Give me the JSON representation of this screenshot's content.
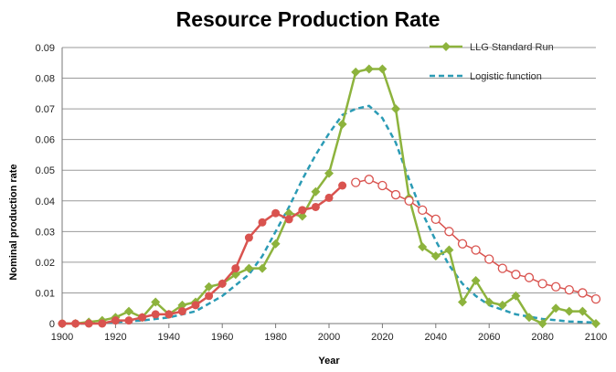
{
  "chart_data": {
    "type": "line",
    "title": "Resource Production Rate",
    "xlabel": "Year",
    "ylabel": "Nominal production rate",
    "xlim": [
      1900,
      2100
    ],
    "ylim": [
      0,
      0.09
    ],
    "x_ticks": [
      1900,
      1920,
      1940,
      1960,
      1980,
      2000,
      2020,
      2040,
      2060,
      2080,
      2100
    ],
    "y_ticks": [
      "0",
      "0.01",
      "0.02",
      "0.03",
      "0.04",
      "0.05",
      "0.06",
      "0.07",
      "0.08",
      "0.09"
    ],
    "grid": "horizontal",
    "legend_position": "top-right",
    "series": [
      {
        "name": "LLG Standard Run",
        "color": "#8db33d",
        "style": "solid-diamond",
        "x": [
          1900,
          1905,
          1910,
          1915,
          1920,
          1925,
          1930,
          1935,
          1940,
          1945,
          1950,
          1955,
          1960,
          1965,
          1970,
          1975,
          1980,
          1985,
          1990,
          1995,
          2000,
          2005,
          2010,
          2015,
          2020,
          2025,
          2030,
          2035,
          2040,
          2045,
          2050,
          2055,
          2060,
          2065,
          2070,
          2075,
          2080,
          2085,
          2090,
          2095,
          2100
        ],
        "y": [
          0,
          0,
          0.0005,
          0.001,
          0.002,
          0.004,
          0.002,
          0.007,
          0.003,
          0.006,
          0.007,
          0.012,
          0.013,
          0.016,
          0.018,
          0.018,
          0.026,
          0.036,
          0.035,
          0.043,
          0.049,
          0.065,
          0.082,
          0.083,
          0.083,
          0.07,
          0.041,
          0.025,
          0.022,
          0.024,
          0.007,
          0.014,
          0.007,
          0.006,
          0.009,
          0.002,
          0,
          0.005,
          0.004,
          0.004,
          0
        ]
      },
      {
        "name": "Logistic function",
        "color": "#2b9bb5",
        "style": "dashed",
        "x": [
          1900,
          1910,
          1920,
          1930,
          1940,
          1950,
          1960,
          1970,
          1975,
          1980,
          1985,
          1990,
          1995,
          2000,
          2005,
          2010,
          2015,
          2020,
          2025,
          2030,
          2035,
          2040,
          2045,
          2050,
          2055,
          2060,
          2070,
          2080,
          2090,
          2100
        ],
        "y": [
          0,
          0,
          0.0005,
          0.001,
          0.002,
          0.004,
          0.009,
          0.016,
          0.022,
          0.03,
          0.038,
          0.047,
          0.055,
          0.062,
          0.068,
          0.07,
          0.071,
          0.067,
          0.059,
          0.047,
          0.036,
          0.027,
          0.019,
          0.013,
          0.009,
          0.006,
          0.003,
          0.0015,
          0.0007,
          0.0003
        ]
      },
      {
        "name": "",
        "color": "#d9534f",
        "style": "solid-circle",
        "x": [
          1900,
          1905,
          1910,
          1915,
          1920,
          1925,
          1930,
          1935,
          1940,
          1945,
          1950,
          1955,
          1960,
          1965,
          1970,
          1975,
          1980,
          1985,
          1990,
          1995,
          2000,
          2005
        ],
        "y": [
          0,
          0,
          0,
          0,
          0.001,
          0.001,
          0.002,
          0.003,
          0.003,
          0.004,
          0.006,
          0.009,
          0.013,
          0.018,
          0.028,
          0.033,
          0.036,
          0.034,
          0.037,
          0.038,
          0.041,
          0.045
        ]
      },
      {
        "name": "",
        "color": "#d9534f",
        "style": "hollow-circle",
        "x": [
          2010,
          2015,
          2020,
          2025,
          2030,
          2035,
          2040,
          2045,
          2050,
          2055,
          2060,
          2065,
          2070,
          2075,
          2080,
          2085,
          2090,
          2095,
          2100
        ],
        "y": [
          0.046,
          0.047,
          0.045,
          0.042,
          0.04,
          0.037,
          0.034,
          0.03,
          0.026,
          0.024,
          0.021,
          0.018,
          0.016,
          0.015,
          0.013,
          0.012,
          0.011,
          0.01,
          0.008
        ]
      }
    ]
  }
}
